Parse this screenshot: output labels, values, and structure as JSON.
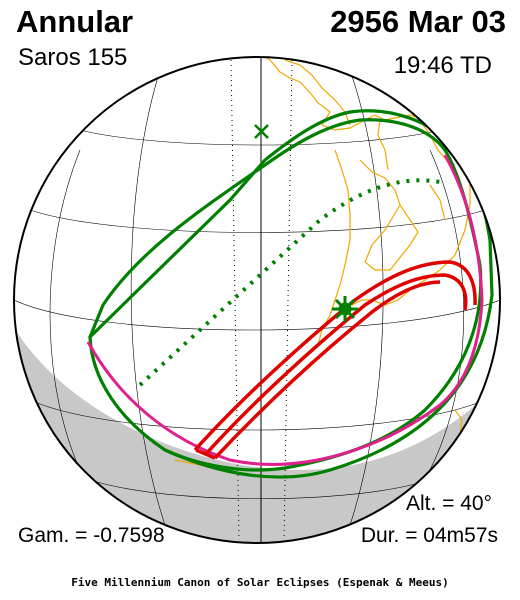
{
  "header": {
    "eclipse_type": "Annular",
    "saros": "Saros 155",
    "date": "2956 Mar 03",
    "time": "19:46 TD"
  },
  "stats": {
    "altitude": "Alt. = 40°",
    "gamma": "Gam. = -0.7598",
    "duration": "Dur. = 04m57s"
  },
  "credit": "Five Millennium Canon of Solar Eclipses (Espenak & Meeus)",
  "colors": {
    "globe_outline": "#000000",
    "night_shade": "#c8c8c8",
    "grid": "#000000",
    "coastline": "#f0a800",
    "penumbra_limits": "#008000",
    "rise_set_curves": "#e0208c",
    "central_path": "#e00000",
    "greatest_eclipse_marker": "#008000"
  },
  "icons": {
    "greatest_eclipse": "star-marker",
    "sub_solar_point": "x-marker"
  }
}
